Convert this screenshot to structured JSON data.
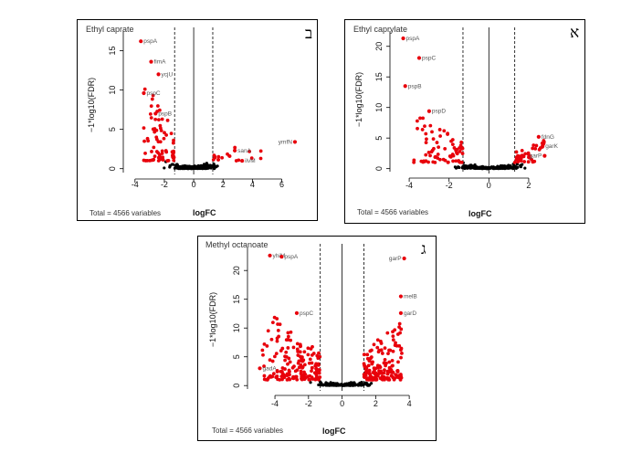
{
  "chart_data": [
    {
      "type": "scatter",
      "title": "Ethyl caprate",
      "panel_label": "ב",
      "xlabel": "logFC",
      "ylabel": "−1*log10(FDR)",
      "footer": "Total = 4566 variables",
      "xlim": [
        -4.3,
        7.4
      ],
      "ylim": [
        -0.5,
        17.5
      ],
      "xticks": [
        -4,
        -2,
        0,
        2,
        4,
        6
      ],
      "yticks": [
        0,
        5,
        10,
        15
      ],
      "thresholds": [
        -1.3,
        1.3
      ],
      "colors": {
        "significant": "#e8000b",
        "not_significant": "#000000"
      },
      "labeled_points": [
        {
          "gene": "pspA",
          "x": -3.6,
          "y": 16.2
        },
        {
          "gene": "fimA",
          "x": -2.9,
          "y": 13.6
        },
        {
          "gene": "ycjU",
          "x": -2.4,
          "y": 12.0
        },
        {
          "gene": "pspC",
          "x": -3.4,
          "y": 9.6
        },
        {
          "gene": "pspB",
          "x": -2.6,
          "y": 7.0
        },
        {
          "gene": "sanA",
          "x": 2.8,
          "y": 2.3
        },
        {
          "gene": "ilvM",
          "x": 3.3,
          "y": 1.0
        },
        {
          "gene": "ymfN",
          "x": 6.9,
          "y": 3.4
        }
      ]
    },
    {
      "type": "scatter",
      "title": "Ethyl caprylate",
      "panel_label": "א",
      "xlabel": "logFC",
      "ylabel": "−1*log10(FDR)",
      "footer": "Total = 4566 variables",
      "xlim": [
        -4.6,
        3.7
      ],
      "ylim": [
        -0.5,
        22.5
      ],
      "xticks": [
        -4,
        -2,
        0,
        2
      ],
      "yticks": [
        0,
        5,
        10,
        15,
        20
      ],
      "thresholds": [
        -1.3,
        1.3
      ],
      "colors": {
        "significant": "#e8000b",
        "not_significant": "#000000"
      },
      "labeled_points": [
        {
          "gene": "pspA",
          "x": -4.3,
          "y": 21.3
        },
        {
          "gene": "pspC",
          "x": -3.5,
          "y": 18.1
        },
        {
          "gene": "pspB",
          "x": -4.2,
          "y": 13.5
        },
        {
          "gene": "pspD",
          "x": -3.0,
          "y": 9.4
        },
        {
          "gene": "fdnG",
          "x": 2.5,
          "y": 5.2
        },
        {
          "gene": "garK",
          "x": 2.7,
          "y": 3.7
        },
        {
          "gene": "garP",
          "x": 2.8,
          "y": 2.1
        }
      ]
    },
    {
      "type": "scatter",
      "title": "Methyl octanoate",
      "panel_label": "ג",
      "xlabel": "logFC",
      "ylabel": "−1*log10(FDR)",
      "footer": "Total = 4566 variables",
      "xlim": [
        -5.2,
        4.7
      ],
      "ylim": [
        -0.6,
        24
      ],
      "xticks": [
        -4,
        -2,
        0,
        2,
        4
      ],
      "yticks": [
        0,
        5,
        10,
        15,
        20
      ],
      "thresholds": [
        -1.3,
        1.3
      ],
      "colors": {
        "significant": "#e8000b",
        "not_significant": "#000000"
      },
      "labeled_points": [
        {
          "gene": "yhiM",
          "x": -4.3,
          "y": 22.6
        },
        {
          "gene": "pspA",
          "x": -3.6,
          "y": 22.4
        },
        {
          "gene": "garP",
          "x": 3.7,
          "y": 22.1
        },
        {
          "gene": "pspC",
          "x": -2.7,
          "y": 12.6
        },
        {
          "gene": "melB",
          "x": 3.5,
          "y": 15.5
        },
        {
          "gene": "garD",
          "x": 3.5,
          "y": 12.6
        },
        {
          "gene": "gadA",
          "x": -4.9,
          "y": 3.0
        }
      ]
    }
  ]
}
